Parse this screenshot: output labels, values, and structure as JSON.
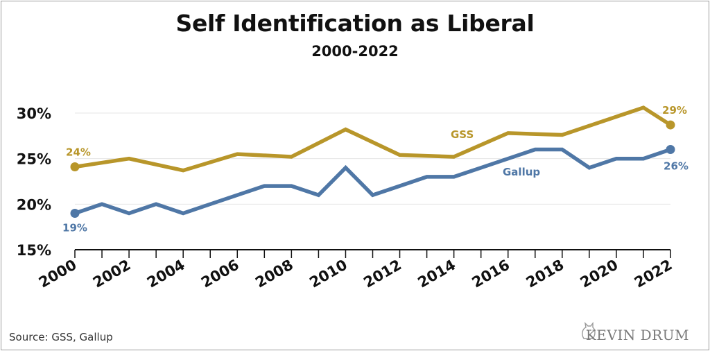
{
  "title": "Self Identification as Liberal",
  "subtitle": "2000-2022",
  "source": "Source: GSS, Gallup",
  "brand": "KEVIN DRUM",
  "colors": {
    "gss": "#b8962a",
    "gallup": "#4f77a6",
    "grid": "#e6e6e6",
    "axis": "#111111"
  },
  "chart_data": {
    "type": "line",
    "title": "Self Identification as Liberal",
    "subtitle": "2000-2022",
    "xlabel": "",
    "ylabel": "",
    "xlim": [
      2000,
      2022
    ],
    "ylim": [
      15,
      31
    ],
    "yticks": [
      15,
      20,
      25,
      30
    ],
    "ytick_labels": [
      "15%",
      "20%",
      "25%",
      "30%"
    ],
    "xtick_labels": [
      "2000",
      "2002",
      "2004",
      "2006",
      "2008",
      "2010",
      "2012",
      "2014",
      "2016",
      "2018",
      "2020",
      "2022"
    ],
    "series": [
      {
        "name": "GSS",
        "label": "GSS",
        "color": "#b8962a",
        "x": [
          2000,
          2002,
          2004,
          2006,
          2008,
          2010,
          2012,
          2014,
          2016,
          2018,
          2021,
          2022
        ],
        "values": [
          24.1,
          25.0,
          23.7,
          25.5,
          25.2,
          28.2,
          25.4,
          25.2,
          27.8,
          27.6,
          30.6,
          28.7
        ],
        "start_label": "24%",
        "end_label": "29%"
      },
      {
        "name": "Gallup",
        "label": "Gallup",
        "color": "#4f77a6",
        "x": [
          2000,
          2001,
          2002,
          2003,
          2004,
          2005,
          2006,
          2007,
          2008,
          2009,
          2010,
          2011,
          2012,
          2013,
          2014,
          2015,
          2016,
          2017,
          2018,
          2019,
          2020,
          2021,
          2022
        ],
        "values": [
          19,
          20,
          19,
          20,
          19,
          20,
          21,
          22,
          22,
          21,
          24,
          21,
          22,
          23,
          23,
          24,
          25,
          26,
          26,
          24,
          25,
          25,
          26
        ],
        "start_label": "19%",
        "end_label": "26%"
      }
    ]
  }
}
